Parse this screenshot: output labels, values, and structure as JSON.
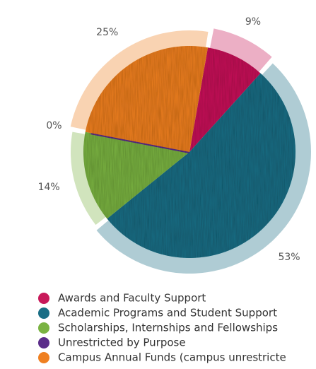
{
  "chart_data": {
    "type": "pie",
    "categories": [
      "Awards and Faculty Support",
      "Academic Programs and Student Support",
      "Scholarships, Internships and Fellowships",
      "Unrestricted by Purpose",
      "Campus Annual Funds (campus unrestricte"
    ],
    "values": [
      9,
      53,
      14,
      0,
      25
    ],
    "value_labels": [
      "9%",
      "53%",
      "14%",
      "0%",
      "25%"
    ],
    "colors": [
      "#c8195a",
      "#1a6e85",
      "#7ab342",
      "#5b2d8a",
      "#ef8021"
    ]
  }
}
